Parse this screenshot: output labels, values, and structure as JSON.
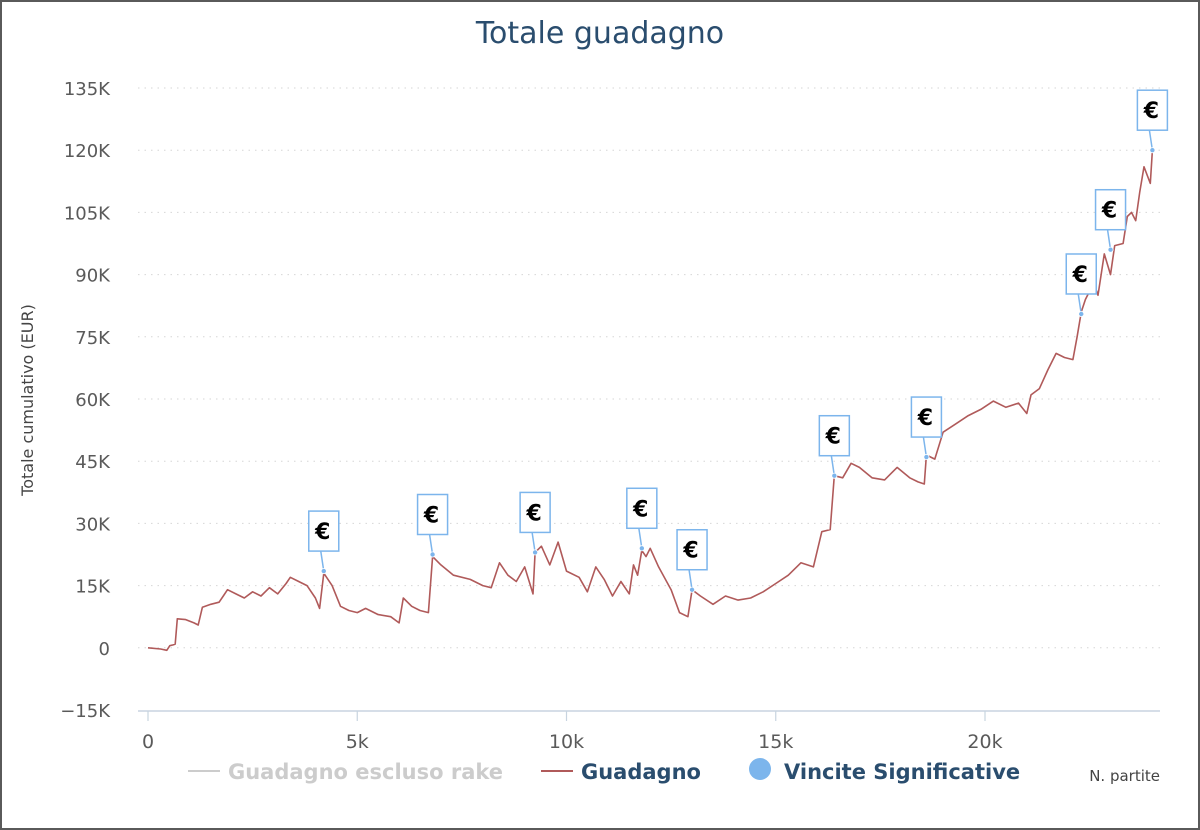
{
  "chart_data": {
    "type": "line",
    "title": "Totale guadagno",
    "ylabel": "Totale cumulativo (EUR)",
    "xlabel": "N. partite",
    "xlim": [
      -500,
      24200
    ],
    "ylim": [
      -15000,
      135000
    ],
    "y_ticks": [
      135000,
      120000,
      105000,
      90000,
      75000,
      60000,
      45000,
      30000,
      15000,
      0,
      -15000
    ],
    "y_tick_labels": [
      "135K",
      "120K",
      "105K",
      "90K",
      "75K",
      "60K",
      "45K",
      "30K",
      "15K",
      "0",
      "−15K"
    ],
    "x_ticks": [
      0,
      5000,
      10000,
      15000,
      20000
    ],
    "x_tick_labels": [
      "0",
      "5k",
      "10k",
      "15k",
      "20k"
    ],
    "grid": "horizontal-dotted",
    "legend_position": "bottom",
    "series": [
      {
        "name": "Guadagno escluso rake",
        "color": "#cccccc",
        "visible": false,
        "points": []
      },
      {
        "name": "Guadagno",
        "color": "#b05a5a",
        "points": [
          [
            0,
            0
          ],
          [
            300,
            -300
          ],
          [
            450,
            -600
          ],
          [
            520,
            500
          ],
          [
            600,
            700
          ],
          [
            650,
            900
          ],
          [
            700,
            7000
          ],
          [
            900,
            6800
          ],
          [
            1100,
            6000
          ],
          [
            1200,
            5500
          ],
          [
            1300,
            9800
          ],
          [
            1500,
            10500
          ],
          [
            1700,
            11000
          ],
          [
            1800,
            12500
          ],
          [
            1900,
            14000
          ],
          [
            2100,
            13000
          ],
          [
            2300,
            12000
          ],
          [
            2500,
            13500
          ],
          [
            2700,
            12500
          ],
          [
            2900,
            14500
          ],
          [
            3100,
            13000
          ],
          [
            3300,
            15500
          ],
          [
            3400,
            17000
          ],
          [
            3600,
            16000
          ],
          [
            3800,
            15000
          ],
          [
            4000,
            12000
          ],
          [
            4100,
            9500
          ],
          [
            4200,
            18000
          ],
          [
            4400,
            15000
          ],
          [
            4600,
            10000
          ],
          [
            4800,
            9000
          ],
          [
            5000,
            8500
          ],
          [
            5200,
            9500
          ],
          [
            5500,
            8000
          ],
          [
            5800,
            7500
          ],
          [
            6000,
            6000
          ],
          [
            6100,
            12000
          ],
          [
            6300,
            10000
          ],
          [
            6500,
            9000
          ],
          [
            6700,
            8500
          ],
          [
            6800,
            22000
          ],
          [
            7000,
            20000
          ],
          [
            7300,
            17500
          ],
          [
            7700,
            16500
          ],
          [
            8000,
            15000
          ],
          [
            8200,
            14500
          ],
          [
            8400,
            20500
          ],
          [
            8600,
            17500
          ],
          [
            8800,
            16000
          ],
          [
            9000,
            19500
          ],
          [
            9200,
            13000
          ],
          [
            9250,
            23000
          ],
          [
            9400,
            24500
          ],
          [
            9600,
            20000
          ],
          [
            9800,
            25500
          ],
          [
            10000,
            18500
          ],
          [
            10300,
            17000
          ],
          [
            10500,
            13500
          ],
          [
            10700,
            19500
          ],
          [
            10900,
            16500
          ],
          [
            11100,
            12500
          ],
          [
            11300,
            16000
          ],
          [
            11500,
            13000
          ],
          [
            11600,
            20000
          ],
          [
            11700,
            17500
          ],
          [
            11800,
            23500
          ],
          [
            11900,
            22000
          ],
          [
            12000,
            24000
          ],
          [
            12200,
            19500
          ],
          [
            12500,
            14000
          ],
          [
            12700,
            8500
          ],
          [
            12900,
            7500
          ],
          [
            13000,
            14000
          ],
          [
            13200,
            12500
          ],
          [
            13500,
            10500
          ],
          [
            13800,
            12500
          ],
          [
            14100,
            11500
          ],
          [
            14400,
            12000
          ],
          [
            14700,
            13500
          ],
          [
            15000,
            15500
          ],
          [
            15300,
            17500
          ],
          [
            15600,
            20500
          ],
          [
            15900,
            19500
          ],
          [
            16100,
            28000
          ],
          [
            16300,
            28500
          ],
          [
            16400,
            41500
          ],
          [
            16600,
            41000
          ],
          [
            16800,
            44500
          ],
          [
            17000,
            43500
          ],
          [
            17300,
            41000
          ],
          [
            17600,
            40500
          ],
          [
            17900,
            43500
          ],
          [
            18200,
            41000
          ],
          [
            18400,
            40000
          ],
          [
            18550,
            39500
          ],
          [
            18600,
            46500
          ],
          [
            18800,
            45500
          ],
          [
            19000,
            52000
          ],
          [
            19300,
            54000
          ],
          [
            19600,
            56000
          ],
          [
            19900,
            57500
          ],
          [
            20200,
            59500
          ],
          [
            20500,
            58000
          ],
          [
            20800,
            59000
          ],
          [
            21000,
            56500
          ],
          [
            21100,
            61000
          ],
          [
            21300,
            62500
          ],
          [
            21500,
            67000
          ],
          [
            21700,
            71000
          ],
          [
            21900,
            70000
          ],
          [
            22100,
            69500
          ],
          [
            22200,
            75000
          ],
          [
            22300,
            81000
          ],
          [
            22400,
            84000
          ],
          [
            22600,
            88000
          ],
          [
            22700,
            85000
          ],
          [
            22850,
            95000
          ],
          [
            23000,
            90000
          ],
          [
            23100,
            97000
          ],
          [
            23300,
            97500
          ],
          [
            23400,
            104000
          ],
          [
            23500,
            105000
          ],
          [
            23600,
            103000
          ],
          [
            23700,
            110000
          ],
          [
            23800,
            116000
          ],
          [
            23950,
            112000
          ],
          [
            24000,
            120000
          ]
        ]
      },
      {
        "name": "Vincite Significative",
        "color": "#7cb5ec",
        "flag_label": "€",
        "points": [
          [
            4200,
            18500
          ],
          [
            6800,
            22500
          ],
          [
            9250,
            23000
          ],
          [
            11800,
            24000
          ],
          [
            13000,
            14000
          ],
          [
            16400,
            41500
          ],
          [
            18600,
            46000
          ],
          [
            22300,
            80500
          ],
          [
            23000,
            96000
          ],
          [
            24000,
            120000
          ]
        ]
      }
    ]
  }
}
